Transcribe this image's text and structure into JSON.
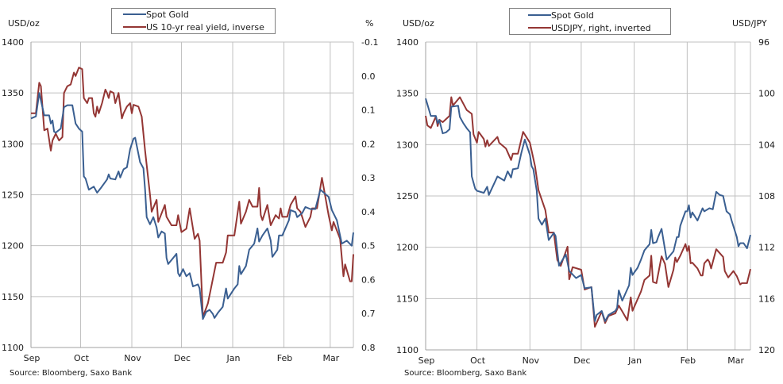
{
  "colors": {
    "gold": "#3a5f91",
    "second": "#943634",
    "grid": "#c0c0c0",
    "legend_border": "#808080"
  },
  "chart_data": [
    {
      "type": "line",
      "ylabel_left": "USD/oz",
      "ylabel_right": "%",
      "source": "Source: Bloomberg, Saxo Bank",
      "legend": [
        "Spot Gold",
        "US 10-yr real yield, inverse"
      ],
      "legend_placement": "top-center",
      "grid": true,
      "x_tick_labels": [
        "Sep",
        "Oct",
        "Nov",
        "Dec",
        "Jan",
        "Feb",
        "Mar"
      ],
      "xlim": [
        "09-01",
        "03-15"
      ],
      "ylim_left": [
        1100,
        1400
      ],
      "yticks_left": [
        "1100",
        "1150",
        "1200",
        "1250",
        "1300",
        "1350",
        "1400"
      ],
      "ylim_right": [
        -0.1,
        0.8
      ],
      "right_axis_inverted": true,
      "yticks_right": [
        "-0.1",
        "0.0",
        "0.1",
        "0.2",
        "0.3",
        "0.4",
        "0.5",
        "0.6",
        "0.7",
        "0.8"
      ],
      "series": [
        {
          "name": "Spot Gold",
          "axis": "left",
          "x": [
            "09-01",
            "09-04",
            "09-06",
            "09-09",
            "09-12",
            "09-13",
            "09-14",
            "09-15",
            "09-16",
            "09-19",
            "09-21",
            "09-23",
            "09-26",
            "09-28",
            "09-30",
            "10-02",
            "10-03",
            "10-04",
            "10-06",
            "10-09",
            "10-11",
            "10-13",
            "10-17",
            "10-18",
            "10-19",
            "10-22",
            "10-24",
            "10-25",
            "10-27",
            "10-29",
            "10-31",
            "11-02",
            "11-03",
            "11-06",
            "11-08",
            "11-09",
            "11-10",
            "11-12",
            "11-14",
            "11-16",
            "11-17",
            "11-19",
            "11-21",
            "11-22",
            "11-23",
            "11-26",
            "11-28",
            "11-29",
            "11-30",
            "12-02",
            "12-04",
            "12-06",
            "12-08",
            "12-11",
            "12-12",
            "12-14",
            "12-16",
            "12-18",
            "12-20",
            "12-21",
            "12-23",
            "12-26",
            "12-28",
            "12-29",
            "01-02",
            "01-04",
            "01-05",
            "01-06",
            "01-09",
            "01-11",
            "01-14",
            "01-16",
            "01-17",
            "01-19",
            "01-22",
            "01-24",
            "01-25",
            "01-28",
            "01-29",
            "01-31",
            "02-04",
            "02-05",
            "02-08",
            "02-09",
            "02-12",
            "02-14",
            "02-17",
            "02-20",
            "02-23",
            "02-28",
            "03-02",
            "03-05",
            "03-08",
            "03-11",
            "03-14",
            "03-15"
          ],
          "y": [
            1325,
            1327,
            1350,
            1328,
            1328,
            1320,
            1323,
            1312,
            1311,
            1315,
            1336,
            1338,
            1338,
            1320,
            1315,
            1312,
            1268,
            1266,
            1255,
            1258,
            1252,
            1256,
            1265,
            1270,
            1266,
            1265,
            1273,
            1267,
            1275,
            1277,
            1295,
            1305,
            1306,
            1282,
            1276,
            1255,
            1228,
            1221,
            1228,
            1218,
            1208,
            1214,
            1212,
            1188,
            1182,
            1188,
            1192,
            1173,
            1170,
            1177,
            1170,
            1173,
            1160,
            1162,
            1158,
            1128,
            1135,
            1137,
            1133,
            1129,
            1134,
            1140,
            1158,
            1148,
            1158,
            1162,
            1180,
            1172,
            1180,
            1196,
            1202,
            1217,
            1204,
            1210,
            1217,
            1205,
            1189,
            1196,
            1210,
            1210,
            1225,
            1235,
            1233,
            1228,
            1232,
            1238,
            1236,
            1236,
            1255,
            1248,
            1235,
            1225,
            1202,
            1205,
            1200,
            1213
          ]
        },
        {
          "name": "US 10-yr real yield, inverse",
          "axis": "right",
          "x": [
            "09-01",
            "09-04",
            "09-06",
            "09-07",
            "09-09",
            "09-11",
            "09-13",
            "09-14",
            "09-16",
            "09-18",
            "09-20",
            "09-21",
            "09-23",
            "09-25",
            "09-27",
            "09-28",
            "09-30",
            "10-02",
            "10-03",
            "10-05",
            "10-06",
            "10-08",
            "10-09",
            "10-10",
            "10-11",
            "10-12",
            "10-14",
            "10-16",
            "10-17",
            "10-18",
            "10-19",
            "10-21",
            "10-22",
            "10-24",
            "10-26",
            "10-27",
            "10-29",
            "10-31",
            "11-01",
            "11-02",
            "11-05",
            "11-07",
            "11-09",
            "11-12",
            "11-13",
            "11-16",
            "11-17",
            "11-21",
            "11-22",
            "11-25",
            "11-28",
            "11-29",
            "12-01",
            "12-04",
            "12-06",
            "12-09",
            "12-11",
            "12-12",
            "12-14",
            "12-17",
            "12-22",
            "12-26",
            "12-28",
            "12-29",
            "01-02",
            "01-05",
            "01-06",
            "01-09",
            "01-11",
            "01-13",
            "01-16",
            "01-17",
            "01-18",
            "01-19",
            "01-22",
            "01-24",
            "01-27",
            "01-29",
            "01-30",
            "01-31",
            "02-03",
            "02-05",
            "02-08",
            "02-09",
            "02-11",
            "02-14",
            "02-17",
            "02-18",
            "02-21",
            "02-24",
            "02-26",
            "02-28",
            "03-02",
            "03-03",
            "03-07",
            "03-09",
            "03-10",
            "03-13",
            "03-14",
            "03-15"
          ],
          "y": [
            0.11,
            0.11,
            0.02,
            0.03,
            0.16,
            0.155,
            0.22,
            0.19,
            0.17,
            0.19,
            0.18,
            0.05,
            0.03,
            0.025,
            -0.01,
            0.0,
            -0.025,
            -0.02,
            0.065,
            0.08,
            0.065,
            0.065,
            0.11,
            0.12,
            0.09,
            0.11,
            0.08,
            0.04,
            0.05,
            0.065,
            0.045,
            0.05,
            0.08,
            0.05,
            0.125,
            0.11,
            0.09,
            0.08,
            0.11,
            0.085,
            0.09,
            0.12,
            0.22,
            0.35,
            0.4,
            0.365,
            0.43,
            0.38,
            0.415,
            0.44,
            0.44,
            0.41,
            0.46,
            0.45,
            0.39,
            0.48,
            0.465,
            0.485,
            0.71,
            0.67,
            0.55,
            0.55,
            0.52,
            0.47,
            0.47,
            0.37,
            0.435,
            0.4,
            0.365,
            0.385,
            0.385,
            0.33,
            0.41,
            0.425,
            0.38,
            0.44,
            0.41,
            0.42,
            0.39,
            0.415,
            0.415,
            0.38,
            0.355,
            0.39,
            0.4,
            0.445,
            0.415,
            0.39,
            0.39,
            0.3,
            0.355,
            0.41,
            0.455,
            0.43,
            0.48,
            0.59,
            0.555,
            0.605,
            0.605,
            0.525
          ]
        }
      ]
    },
    {
      "type": "line",
      "ylabel_left": "USD/oz",
      "ylabel_right": "USD/JPY",
      "source": "Source: Bloomberg, Saxo Bank",
      "legend": [
        "Spot Gold",
        "USDJPY, right, inverted"
      ],
      "legend_placement": "top-center",
      "grid": true,
      "x_tick_labels": [
        "Sep",
        "Oct",
        "Nov",
        "Dec",
        "Jan",
        "Feb",
        "Mar"
      ],
      "xlim": [
        "09-01",
        "03-10"
      ],
      "ylim_left": [
        1100,
        1400
      ],
      "yticks_left": [
        "1100",
        "1150",
        "1200",
        "1250",
        "1300",
        "1350",
        "1400"
      ],
      "ylim_right": [
        96,
        120
      ],
      "right_axis_inverted": true,
      "yticks_right": [
        "96",
        "100",
        "104",
        "108",
        "112",
        "116",
        "120"
      ],
      "series": [
        {
          "name": "Spot Gold",
          "axis": "left",
          "x": [
            "09-01",
            "09-04",
            "09-07",
            "09-08",
            "09-09",
            "09-11",
            "09-13",
            "09-15",
            "09-16",
            "09-20",
            "09-21",
            "09-23",
            "09-25",
            "09-27",
            "09-28",
            "09-30",
            "10-01",
            "10-05",
            "10-07",
            "10-08",
            "10-13",
            "10-17",
            "10-19",
            "10-21",
            "10-22",
            "10-25",
            "10-27",
            "10-29",
            "11-01",
            "11-02",
            "11-03",
            "11-05",
            "11-06",
            "11-08",
            "11-10",
            "11-12",
            "11-15",
            "11-16",
            "11-18",
            "11-22",
            "11-24",
            "11-28",
            "12-01",
            "12-03",
            "12-07",
            "12-09",
            "12-10",
            "12-13",
            "12-15",
            "12-17",
            "12-21",
            "12-22",
            "12-23",
            "12-25",
            "12-29",
            "12-30",
            "12-31",
            "01-03",
            "01-05",
            "01-07",
            "01-10",
            "01-11",
            "01-12",
            "01-14",
            "01-15",
            "01-17",
            "01-20",
            "01-24",
            "01-26",
            "01-27",
            "01-28",
            "01-31",
            "02-01",
            "02-02",
            "02-03",
            "02-04",
            "02-07",
            "02-10",
            "02-11",
            "02-14",
            "02-16",
            "02-18",
            "02-20",
            "02-22",
            "02-24",
            "02-26",
            "02-27",
            "03-02",
            "03-03",
            "03-04",
            "03-06",
            "03-08",
            "03-10"
          ],
          "y": [
            1345,
            1328,
            1328,
            1321,
            1324,
            1311,
            1312,
            1315,
            1337,
            1338,
            1327,
            1321,
            1316,
            1312,
            1269,
            1257,
            1255,
            1253,
            1259,
            1251,
            1269,
            1265,
            1274,
            1268,
            1276,
            1277,
            1292,
            1305,
            1290,
            1279,
            1276,
            1255,
            1228,
            1222,
            1228,
            1207,
            1214,
            1211,
            1182,
            1193,
            1177,
            1170,
            1173,
            1160,
            1161,
            1128,
            1134,
            1138,
            1128,
            1134,
            1138,
            1141,
            1158,
            1148,
            1163,
            1180,
            1173,
            1180,
            1188,
            1197,
            1203,
            1217,
            1204,
            1205,
            1210,
            1218,
            1188,
            1196,
            1210,
            1210,
            1221,
            1235,
            1235,
            1241,
            1229,
            1234,
            1226,
            1238,
            1235,
            1238,
            1237,
            1254,
            1251,
            1250,
            1235,
            1232,
            1226,
            1210,
            1201,
            1204,
            1204,
            1199,
            1212
          ]
        },
        {
          "name": "USDJPY, right, inverted",
          "axis": "right",
          "x": [
            "09-01",
            "09-02",
            "09-04",
            "09-07",
            "09-08",
            "09-09",
            "09-11",
            "09-15",
            "09-16",
            "09-17",
            "09-21",
            "09-25",
            "09-28",
            "09-29",
            "10-01",
            "10-02",
            "10-05",
            "10-06",
            "10-07",
            "10-08",
            "10-13",
            "10-14",
            "10-18",
            "10-21",
            "10-22",
            "10-25",
            "10-28",
            "11-01",
            "11-04",
            "11-05",
            "11-06",
            "11-10",
            "11-12",
            "11-15",
            "11-17",
            "11-19",
            "11-23",
            "11-24",
            "11-26",
            "12-01",
            "12-03",
            "12-07",
            "12-09",
            "12-13",
            "12-15",
            "12-17",
            "12-21",
            "12-23",
            "12-25",
            "12-28",
            "12-30",
            "12-31",
            "01-05",
            "01-07",
            "01-10",
            "01-11",
            "01-12",
            "01-14",
            "01-17",
            "01-19",
            "01-21",
            "01-24",
            "01-25",
            "01-26",
            "01-28",
            "01-31",
            "02-01",
            "02-02",
            "02-03",
            "02-04",
            "02-07",
            "02-09",
            "02-10",
            "02-11",
            "02-13",
            "02-14",
            "02-15",
            "02-18",
            "02-22",
            "02-23",
            "02-25",
            "02-28",
            "03-02",
            "03-04",
            "03-05",
            "03-08",
            "03-10"
          ],
          "y": [
            101.75,
            102.5,
            102.7,
            101.8,
            102.55,
            102.05,
            102.25,
            101.75,
            100.3,
            100.95,
            100.3,
            101.3,
            101.6,
            103.2,
            103.85,
            103.0,
            103.55,
            104.15,
            103.65,
            104.1,
            103.4,
            103.85,
            104.3,
            105.2,
            104.7,
            104.7,
            103.0,
            103.85,
            105.7,
            106.6,
            107.55,
            109.1,
            110.85,
            110.85,
            113.0,
            113.45,
            111.95,
            114.5,
            113.55,
            113.75,
            115.3,
            115.1,
            118.2,
            117.0,
            117.9,
            117.35,
            117.15,
            116.55,
            117.0,
            117.7,
            115.9,
            116.95,
            115.45,
            114.55,
            114.2,
            112.65,
            114.7,
            114.8,
            112.7,
            113.3,
            115.1,
            113.75,
            112.8,
            113.15,
            112.65,
            111.75,
            112.3,
            111.9,
            113.25,
            113.2,
            113.65,
            114.2,
            114.2,
            113.25,
            112.95,
            113.15,
            113.65,
            112.15,
            112.75,
            113.85,
            114.35,
            113.85,
            114.25,
            114.9,
            114.8,
            114.8,
            113.7
          ]
        }
      ]
    }
  ]
}
